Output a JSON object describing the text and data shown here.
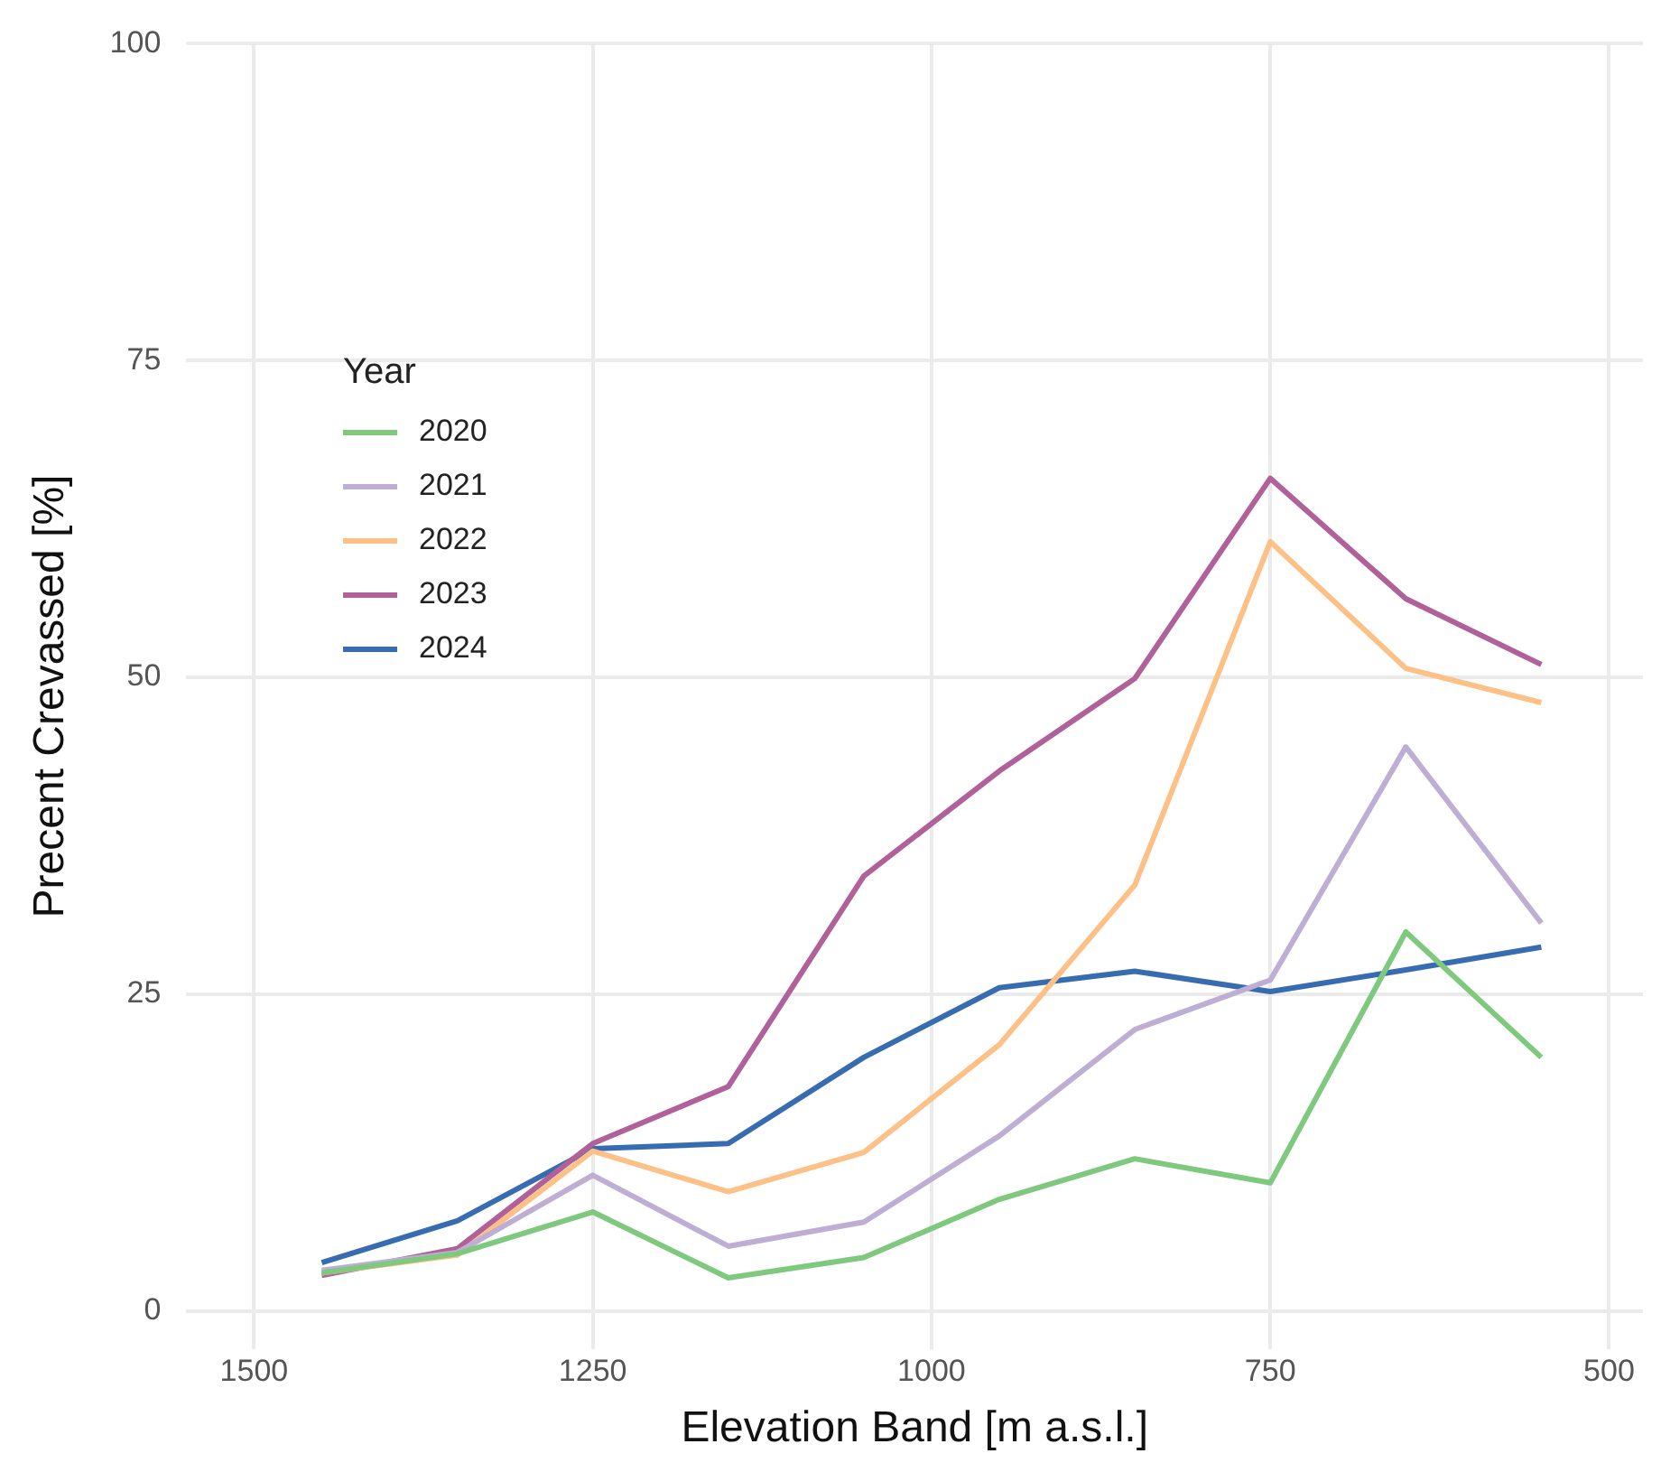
{
  "chart_data": {
    "type": "line",
    "xlabel": "Elevation Band [m a.s.l.]",
    "ylabel": "Precent Crevassed [%]",
    "legend_title": "Year",
    "x": [
      1450,
      1350,
      1250,
      1150,
      1050,
      950,
      850,
      750,
      650,
      550
    ],
    "series": [
      {
        "name": "2020",
        "color": "#7fc97f",
        "values": [
          3.0,
          4.5,
          7.8,
          2.6,
          4.2,
          8.8,
          12.0,
          10.1,
          29.9,
          20.0
        ]
      },
      {
        "name": "2021",
        "color": "#beaed4",
        "values": [
          3.2,
          4.6,
          10.7,
          5.1,
          7.0,
          13.8,
          22.2,
          26.1,
          44.5,
          30.6
        ]
      },
      {
        "name": "2022",
        "color": "#fdc086",
        "values": [
          3.0,
          4.4,
          12.6,
          9.4,
          12.5,
          21.0,
          33.6,
          60.7,
          50.7,
          48.0
        ]
      },
      {
        "name": "2023",
        "color": "#b0619a",
        "values": [
          2.8,
          4.9,
          13.2,
          17.7,
          34.3,
          42.6,
          49.9,
          65.7,
          56.2,
          51.0
        ]
      },
      {
        "name": "2024",
        "color": "#386cb0",
        "values": [
          3.8,
          7.1,
          12.8,
          13.2,
          20.0,
          25.5,
          26.8,
          25.2,
          26.9,
          28.7
        ]
      }
    ],
    "xlim": [
      1550,
      475
    ],
    "xticks": [
      1500,
      1250,
      1000,
      750,
      500
    ],
    "ylim": [
      -3,
      100
    ],
    "yticks": [
      0,
      25,
      50,
      75,
      100
    ],
    "grid": true,
    "legend": "left",
    "marker": "none",
    "line_style": "solid"
  }
}
